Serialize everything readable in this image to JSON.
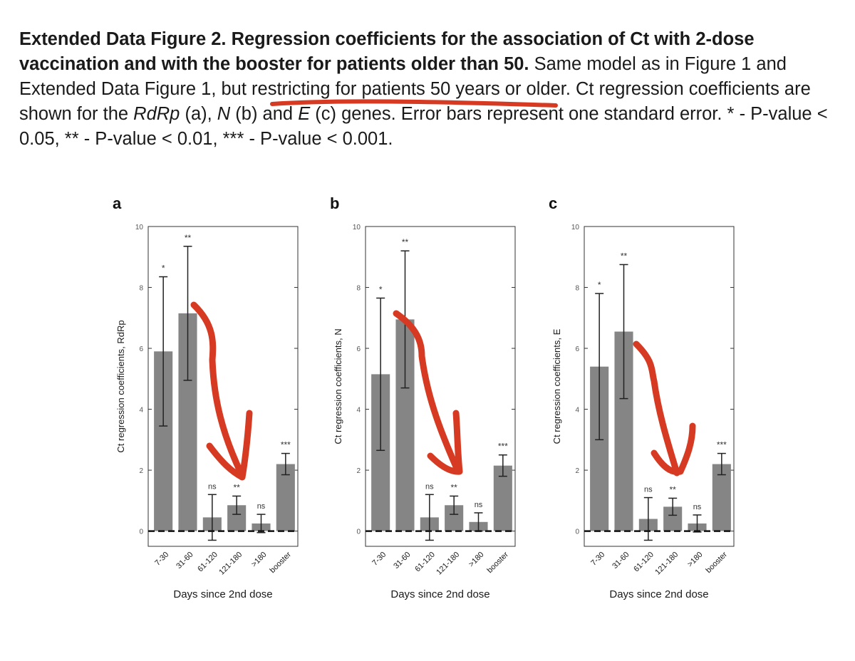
{
  "caption": {
    "bold": "Extended Data Figure 2. Regression coefficients for the association of Ct with 2-dose vaccination and with the booster for patients older than 50.",
    "part1": " Same model as in Figure 1 and Extended Data Figure 1, but restricting for patients 50 years or older. Ct regression coefficients are shown for the ",
    "gene1": "RdRp",
    "part2": " (a), ",
    "gene2": "N",
    "part3": " (b) and ",
    "gene3": "E",
    "part4": " (c) genes. Error bars represent one standard error. * - P-value < 0.05, ** - P-value < 0.01, *** - P-value < 0.001."
  },
  "colors": {
    "bar": "#858585",
    "annotation": "#d63a22",
    "text": "#1a1a1a"
  },
  "chart_data": [
    {
      "type": "bar",
      "panel_label": "a",
      "ylabel": "Ct regression coefficients, RdRp",
      "xlabel": "Days since 2nd dose",
      "ylim": [
        -0.5,
        10
      ],
      "yticks": [
        "0",
        "2",
        "4",
        "6",
        "8",
        "10"
      ],
      "categories": [
        "7-30",
        "31-60",
        "61-120",
        "121-180",
        ">180",
        "booster"
      ],
      "values": [
        5.9,
        7.15,
        0.45,
        0.85,
        0.25,
        2.2
      ],
      "errors": [
        2.45,
        2.2,
        0.75,
        0.3,
        0.3,
        0.35
      ],
      "significance": [
        "*",
        "**",
        "ns",
        "**",
        "ns",
        "***"
      ]
    },
    {
      "type": "bar",
      "panel_label": "b",
      "ylabel": "Ct regression coefficients, N",
      "xlabel": "Days since 2nd dose",
      "ylim": [
        -0.5,
        10
      ],
      "yticks": [
        "0",
        "2",
        "4",
        "6",
        "8",
        "10"
      ],
      "categories": [
        "7-30",
        "31-60",
        "61-120",
        "121-180",
        ">180",
        "booster"
      ],
      "values": [
        5.15,
        6.95,
        0.45,
        0.85,
        0.3,
        2.15
      ],
      "errors": [
        2.5,
        2.25,
        0.75,
        0.3,
        0.3,
        0.35
      ],
      "significance": [
        "*",
        "**",
        "ns",
        "**",
        "ns",
        "***"
      ]
    },
    {
      "type": "bar",
      "panel_label": "c",
      "ylabel": "Ct regression coefficients, E",
      "xlabel": "Days since 2nd dose",
      "ylim": [
        -0.5,
        10
      ],
      "yticks": [
        "0",
        "2",
        "4",
        "6",
        "8",
        "10"
      ],
      "categories": [
        "7-30",
        "31-60",
        "61-120",
        "121-180",
        ">180",
        "booster"
      ],
      "values": [
        5.4,
        6.55,
        0.4,
        0.8,
        0.25,
        2.2
      ],
      "errors": [
        2.4,
        2.2,
        0.7,
        0.28,
        0.28,
        0.35
      ],
      "significance": [
        "*",
        "**",
        "ns",
        "**",
        "ns",
        "***"
      ]
    }
  ]
}
